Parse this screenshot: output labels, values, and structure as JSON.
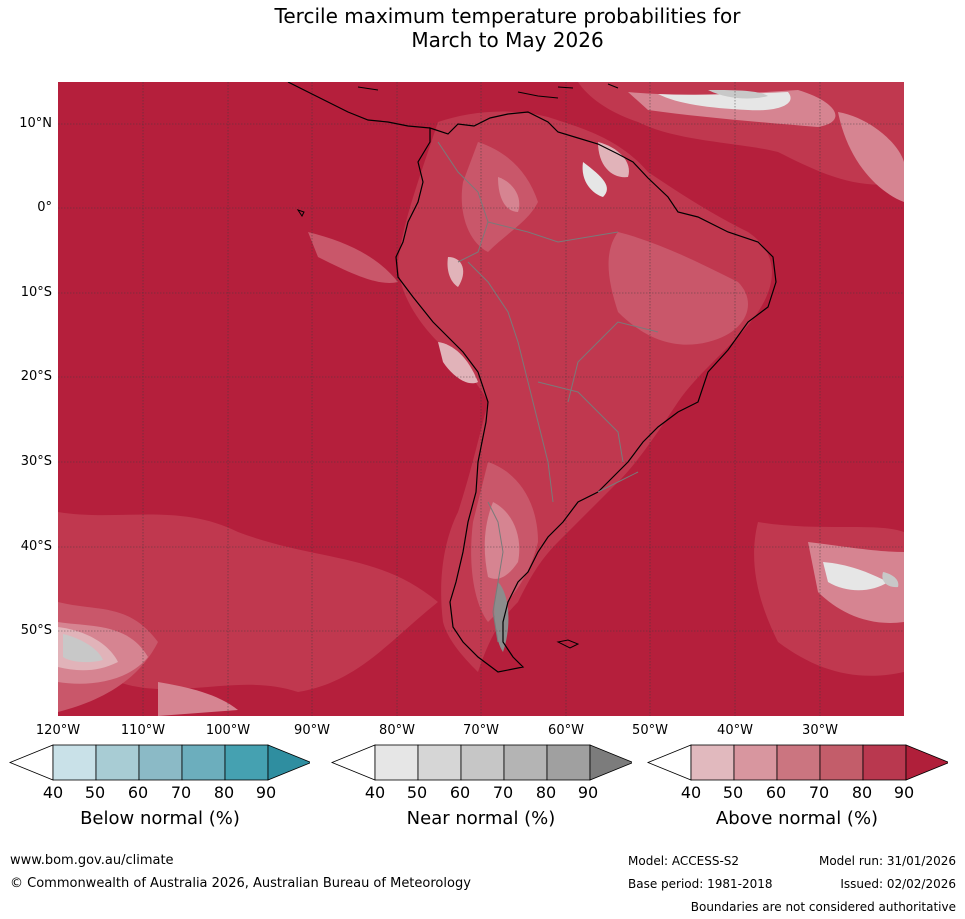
{
  "title": {
    "line1": "Tercile maximum temperature probabilities for",
    "line2": "March to May 2026"
  },
  "map": {
    "colors": {
      "ocean_main": "#b51f3c",
      "above_80": "#c0384f",
      "above_70": "#c9576a",
      "above_60": "#d68491",
      "above_50": "#e1b3b9",
      "near_gray_light": "#e6e6e6",
      "near_gray_mid": "#c8c8c8",
      "near_gray_dark": "#8c8c8c",
      "coast": "#000000",
      "border": "#7a7a7a",
      "grid": "#3a3a3a"
    },
    "lat_labels": [
      "10°N",
      "0°",
      "10°S",
      "20°S",
      "30°S",
      "40°S",
      "50°S"
    ],
    "lon_labels": [
      "120°W",
      "110°W",
      "100°W",
      "90°W",
      "80°W",
      "70°W",
      "60°W",
      "50°W",
      "40°W",
      "30°W"
    ]
  },
  "colorbars": [
    {
      "title": "Below normal (%)",
      "ticks": [
        "40",
        "50",
        "60",
        "70",
        "80",
        "90"
      ],
      "colors": [
        "#ffffff",
        "#c9e1e8",
        "#a8ccd4",
        "#8bbac6",
        "#6caebd",
        "#45a1b1",
        "#2f8ea0"
      ]
    },
    {
      "title": "Near normal (%)",
      "ticks": [
        "40",
        "50",
        "60",
        "70",
        "80",
        "90"
      ],
      "colors": [
        "#ffffff",
        "#e6e6e6",
        "#d6d6d6",
        "#c6c6c6",
        "#b4b4b4",
        "#a0a0a0",
        "#7c7c7c"
      ]
    },
    {
      "title": "Above normal (%)",
      "ticks": [
        "40",
        "50",
        "60",
        "70",
        "80",
        "90"
      ],
      "colors": [
        "#ffffff",
        "#e1b9be",
        "#d8969f",
        "#cb7580",
        "#c35d6a",
        "#b9384f",
        "#b01f3a"
      ]
    }
  ],
  "footer": {
    "url": "www.bom.gov.au/climate",
    "copyright": "© Commonwealth of Australia 2026, Australian Bureau of Meteorology",
    "model": "Model: ACCESS-S2",
    "model_run": "Model run: 31/01/2026",
    "base_period": "Base period: 1981-2018",
    "issued": "Issued: 02/02/2026",
    "boundaries": "Boundaries are not considered authoritative"
  }
}
